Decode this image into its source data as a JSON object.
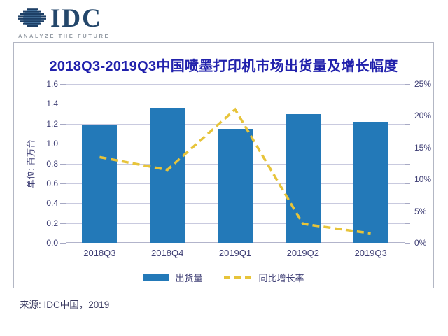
{
  "logo": {
    "name": "IDC",
    "tagline": "ANALYZE THE FUTURE"
  },
  "chart": {
    "title": "2018Q3-2019Q3中国喷墨打印机市场出货量及增长幅度",
    "left_axis_unit": "单位: 百万台",
    "legend": [
      {
        "label": "出货量",
        "swatch": "bar",
        "color": "#2379b8"
      },
      {
        "label": "同比增长率",
        "swatch": "dashed-line",
        "color": "#e7c43a"
      }
    ]
  },
  "source": "来源: IDC中国，2019",
  "colors": {
    "bar": "#2379b8",
    "growth_line": "#e7c43a",
    "title": "#2121ac",
    "axis_text": "#3f3f75",
    "gridline": "#c9cadf",
    "card_border": "#b3b7c4",
    "logo_navy": "#24476b",
    "logo_globe_blue": "#5f93bf"
  },
  "chart_data": {
    "type": "bar",
    "title": "2018Q3-2019Q3中国喷墨打印机市场出货量及增长幅度",
    "categories": [
      "2018Q3",
      "2018Q4",
      "2019Q1",
      "2019Q2",
      "2019Q3"
    ],
    "series": [
      {
        "name": "出货量",
        "type": "bar",
        "axis": "left",
        "unit": "百万台",
        "values": [
          1.19,
          1.36,
          1.15,
          1.3,
          1.22
        ]
      },
      {
        "name": "同比增长率",
        "type": "line",
        "style": "dashed",
        "axis": "right",
        "unit": "%",
        "values": [
          13.5,
          11.5,
          21,
          3,
          1.5
        ]
      }
    ],
    "left_axis": {
      "min": 0,
      "max": 1.6,
      "tick_step": 0.2,
      "labels": [
        "0.0",
        "0.2",
        "0.4",
        "0.6",
        "0.8",
        "1.0",
        "1.2",
        "1.4",
        "1.6"
      ]
    },
    "right_axis": {
      "min": 0,
      "max": 25,
      "tick_step": 5,
      "labels": [
        "0%",
        "5%",
        "10%",
        "15%",
        "20%",
        "25%"
      ]
    },
    "grid": true,
    "legend_position": "bottom"
  }
}
